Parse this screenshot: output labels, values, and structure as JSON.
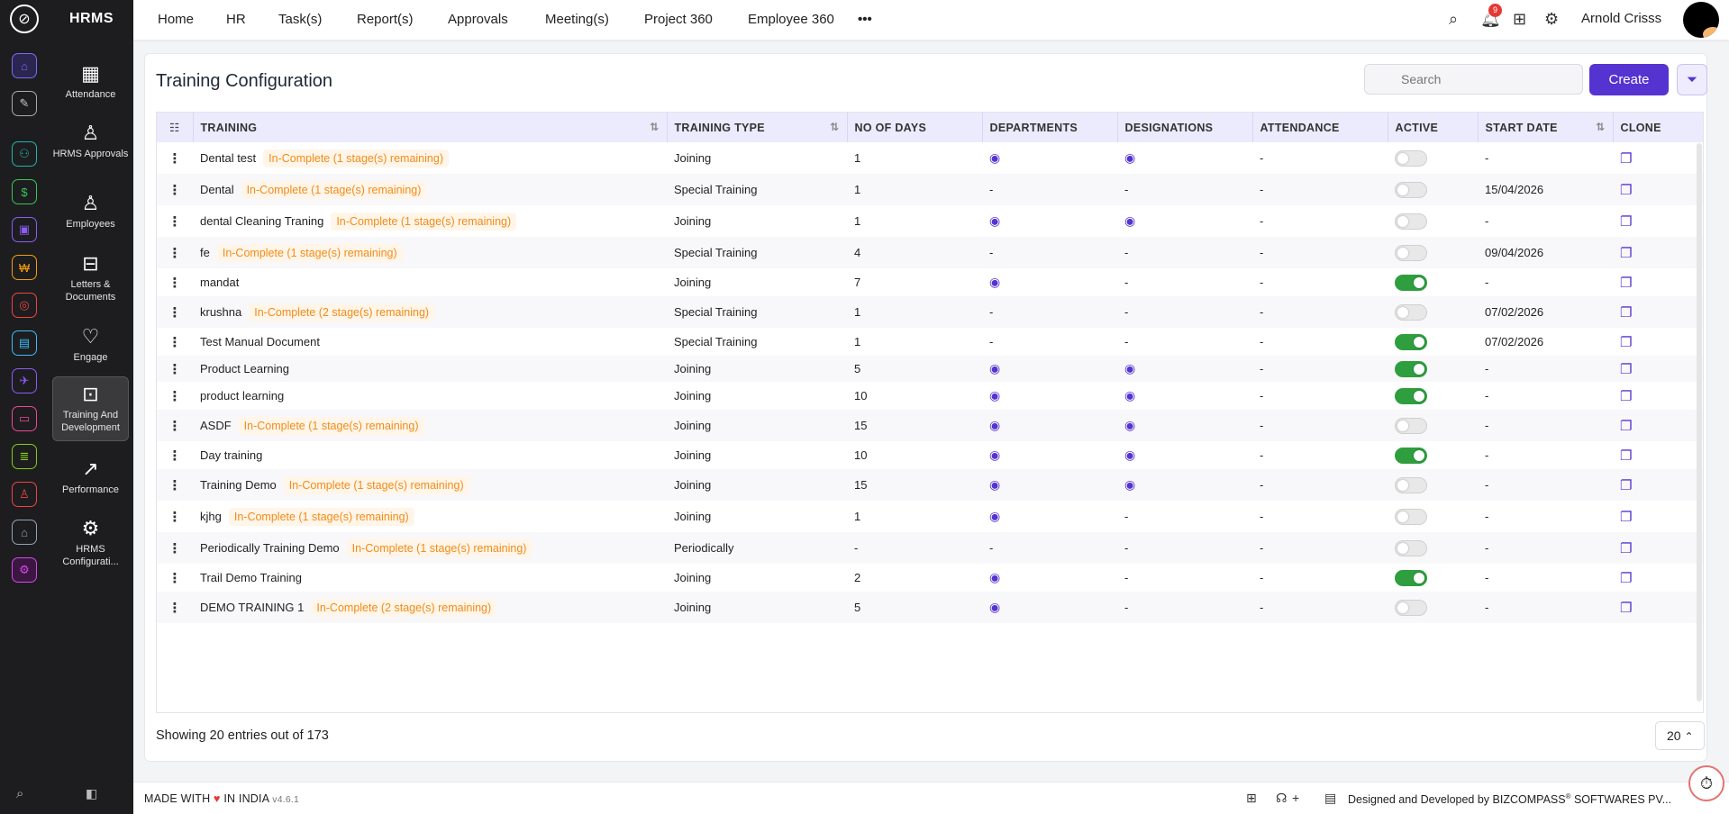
{
  "app": {
    "name": "HRMS"
  },
  "modules": [
    {
      "label": "Attendance",
      "icon": "calendar-clock-icon"
    },
    {
      "label": "HRMS Approvals",
      "icon": "user-check-icon"
    },
    {
      "label": "Employees",
      "icon": "user-icon"
    },
    {
      "label": "Letters & Documents",
      "icon": "inbox-icon"
    },
    {
      "label": "Engage",
      "icon": "heart-hand-icon"
    },
    {
      "label": "Training And Development",
      "icon": "presenter-icon"
    },
    {
      "label": "Performance",
      "icon": "trend-chart-icon"
    },
    {
      "label": "HRMS Configurati...",
      "icon": "gear-icon"
    }
  ],
  "nav": [
    "Home",
    "HR",
    "Task(s)",
    "Report(s)",
    "Approvals",
    "Meeting(s)",
    "Project 360",
    "Employee 360"
  ],
  "header": {
    "more": "•••",
    "notification_count": "9",
    "user_name": "Arnold Crisss"
  },
  "page": {
    "title": "Training Configuration",
    "search_placeholder": "Search",
    "create_label": "Create"
  },
  "columns": [
    "TRAINING",
    "TRAINING TYPE",
    "NO OF DAYS",
    "DEPARTMENTS",
    "DESIGNATIONS",
    "ATTENDANCE",
    "ACTIVE",
    "START DATE",
    "CLONE"
  ],
  "rows": [
    {
      "name": "Dental test",
      "status": "In-Complete (1 stage(s) remaining)",
      "type": "Joining",
      "days": "1",
      "departments": "eye",
      "designations": "eye",
      "attendance": "-",
      "active": false,
      "start_date": "-"
    },
    {
      "name": "Dental",
      "status": "In-Complete (1 stage(s) remaining)",
      "type": "Special Training",
      "days": "1",
      "departments": "-",
      "designations": "-",
      "attendance": "-",
      "active": false,
      "start_date": "15/04/2026"
    },
    {
      "name": "dental Cleaning Traning",
      "status": "In-Complete (1 stage(s) remaining)",
      "type": "Joining",
      "days": "1",
      "departments": "eye",
      "designations": "eye",
      "attendance": "-",
      "active": false,
      "start_date": "-"
    },
    {
      "name": "fe",
      "status": "In-Complete (1 stage(s) remaining)",
      "type": "Special Training",
      "days": "4",
      "departments": "-",
      "designations": "-",
      "attendance": "-",
      "active": false,
      "start_date": "09/04/2026"
    },
    {
      "name": "mandat",
      "status": "",
      "type": "Joining",
      "days": "7",
      "departments": "eye",
      "designations": "-",
      "attendance": "-",
      "active": true,
      "start_date": "-"
    },
    {
      "name": "krushna",
      "status": "In-Complete (2 stage(s) remaining)",
      "type": "Special Training",
      "days": "1",
      "departments": "-",
      "designations": "-",
      "attendance": "-",
      "active": false,
      "start_date": "07/02/2026"
    },
    {
      "name": "Test Manual Document",
      "status": "",
      "type": "Special Training",
      "days": "1",
      "departments": "-",
      "designations": "-",
      "attendance": "-",
      "active": true,
      "start_date": "07/02/2026"
    },
    {
      "name": "Product Learning",
      "status": "",
      "type": "Joining",
      "days": "5",
      "departments": "eye",
      "designations": "eye",
      "attendance": "-",
      "active": true,
      "start_date": "-"
    },
    {
      "name": "product learning",
      "status": "",
      "type": "Joining",
      "days": "10",
      "departments": "eye",
      "designations": "eye",
      "attendance": "-",
      "active": true,
      "start_date": "-"
    },
    {
      "name": "ASDF",
      "status": "In-Complete (1 stage(s) remaining)",
      "type": "Joining",
      "days": "15",
      "departments": "eye",
      "designations": "eye",
      "attendance": "-",
      "active": false,
      "start_date": "-"
    },
    {
      "name": "Day training",
      "status": "",
      "type": "Joining",
      "days": "10",
      "departments": "eye",
      "designations": "eye",
      "attendance": "-",
      "active": true,
      "start_date": "-"
    },
    {
      "name": "Training Demo",
      "status": "In-Complete (1 stage(s) remaining)",
      "type": "Joining",
      "days": "15",
      "departments": "eye",
      "designations": "eye",
      "attendance": "-",
      "active": false,
      "start_date": "-"
    },
    {
      "name": "kjhg",
      "status": "In-Complete (1 stage(s) remaining)",
      "type": "Joining",
      "days": "1",
      "departments": "eye",
      "designations": "-",
      "attendance": "-",
      "active": false,
      "start_date": "-"
    },
    {
      "name": "Periodically Training Demo",
      "status": "In-Complete (1 stage(s) remaining)",
      "type": "Periodically",
      "days": "-",
      "departments": "-",
      "designations": "-",
      "attendance": "-",
      "active": false,
      "start_date": "-"
    },
    {
      "name": "Trail Demo Training",
      "status": "",
      "type": "Joining",
      "days": "2",
      "departments": "eye",
      "designations": "-",
      "attendance": "-",
      "active": true,
      "start_date": "-"
    },
    {
      "name": "DEMO TRAINING 1",
      "status": "In-Complete (2 stage(s) remaining)",
      "type": "Joining",
      "days": "5",
      "departments": "eye",
      "designations": "-",
      "attendance": "-",
      "active": false,
      "start_date": "-"
    }
  ],
  "pagination": {
    "summary": "Showing 20 entries out of 173",
    "page_size": "20"
  },
  "footer": {
    "made_with": "MADE WITH",
    "in_india": "IN INDIA",
    "version": "v4.6.1",
    "credit": "Designed and Developed by",
    "company": "BIZCOMPASS",
    "company_suffix": "SOFTWARES PV..."
  },
  "colors": {
    "accent": "#5533d1",
    "active_toggle": "#2e9e3e",
    "status_text": "#f28c18",
    "sidebar_bg": "#1d1d1f"
  }
}
